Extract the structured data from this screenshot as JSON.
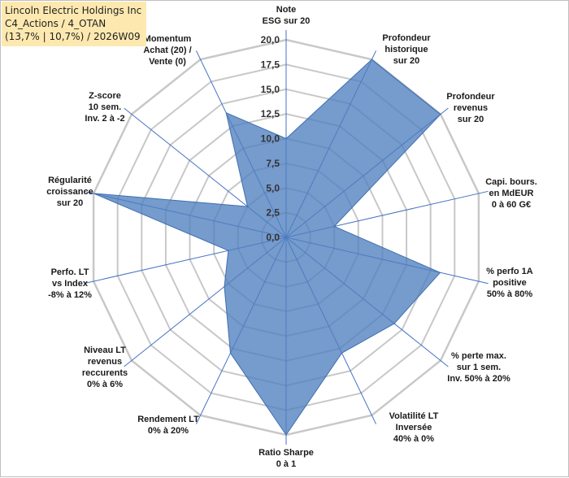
{
  "title_box": {
    "line1": "Lincoln Electric Holdings Inc",
    "line2": "C4_Actions / 4_OTAN",
    "line3": "(13,7% | 10,7%) / 2026W09"
  },
  "colors": {
    "fill": "#4f7fbf",
    "fill_opacity": 0.78,
    "stroke": "#3f6fb0",
    "spoke": "#4472c4",
    "grid": "#c8c8c8"
  },
  "chart_data": {
    "type": "radar",
    "rmax": 20,
    "ticks": [
      "0,0",
      "2,5",
      "5,0",
      "7,5",
      "10,0",
      "12,5",
      "15,0",
      "17,5",
      "20,0"
    ],
    "tick_values": [
      0,
      2.5,
      5,
      7.5,
      10,
      12.5,
      15,
      17.5,
      20
    ],
    "axes": [
      {
        "label": [
          "Note",
          "ESG sur 20"
        ],
        "value": 10
      },
      {
        "label": [
          "Profondeur",
          "historique",
          "sur 20"
        ],
        "value": 20
      },
      {
        "label": [
          "Profondeur",
          "revenus",
          "sur 20"
        ],
        "value": 20
      },
      {
        "label": [
          "Capi. bours.",
          "en MdEUR",
          "0 à 60 G€"
        ],
        "value": 5
      },
      {
        "label": [
          "% perfo 1A",
          "positive",
          "50% à 80%"
        ],
        "value": 16
      },
      {
        "label": [
          "% perte max.",
          "sur 1 sem.",
          "Inv. 50% à 20%"
        ],
        "value": 14
      },
      {
        "label": [
          "Volatilité LT",
          "Inversée",
          "40% à 0%"
        ],
        "value": 13
      },
      {
        "label": [
          "Ratio Sharpe",
          "0 à 1"
        ],
        "value": 20
      },
      {
        "label": [
          "Rendement LT",
          "0% à 20%"
        ],
        "value": 13
      },
      {
        "label": [
          "Niveau LT",
          "revenus",
          "reccurents",
          "0% à 6%"
        ],
        "value": 8
      },
      {
        "label": [
          "Perfo. LT",
          "vs Index",
          "-8% à 12%"
        ],
        "value": 6
      },
      {
        "label": [
          "Régularité",
          "croissance",
          "sur 20"
        ],
        "value": 20
      },
      {
        "label": [
          "Z-score",
          "10 sem.",
          "Inv. 2 à -2"
        ],
        "value": 5
      },
      {
        "label": [
          "Momentum",
          "Achat (20) /",
          "Vente (0)"
        ],
        "value": 14
      }
    ]
  }
}
